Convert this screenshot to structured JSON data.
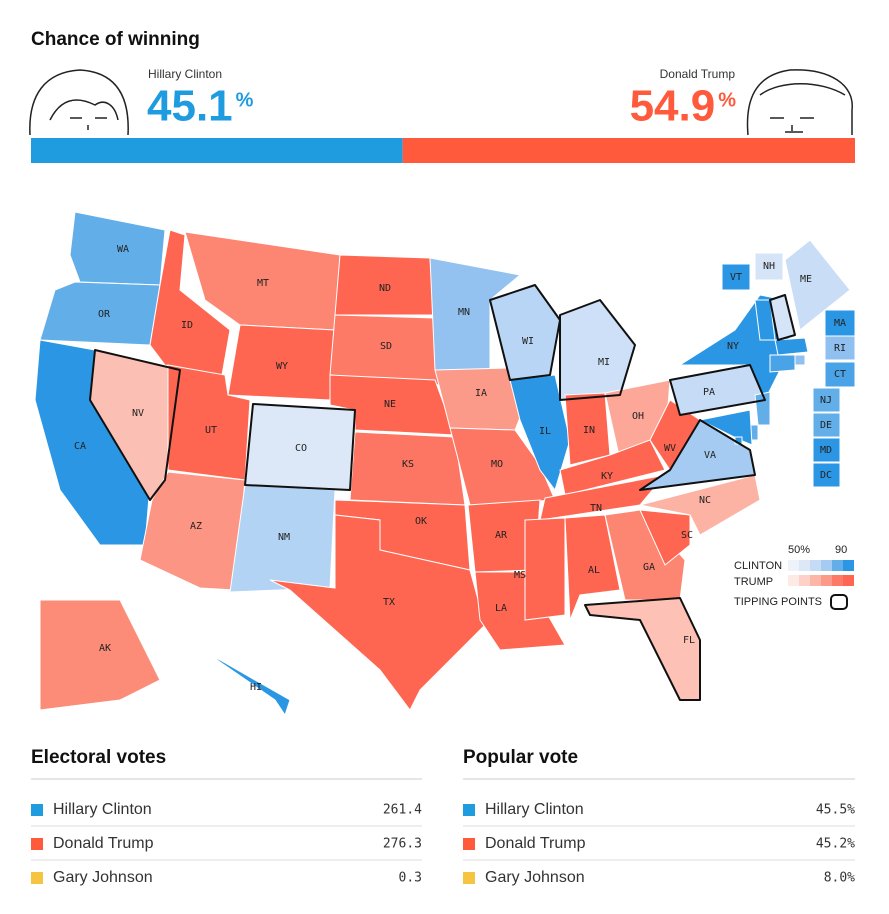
{
  "header": {
    "title": "Chance of winning"
  },
  "candidates": [
    {
      "name": "Hillary Clinton",
      "value": 45.1,
      "unit": "%",
      "color": "#1f9be0"
    },
    {
      "name": "Donald Trump",
      "value": 54.9,
      "unit": "%",
      "color": "#ff5a3c"
    }
  ],
  "map": {
    "states": [
      {
        "abbr": "WA",
        "color": "#62aee9"
      },
      {
        "abbr": "OR",
        "color": "#62aee9"
      },
      {
        "abbr": "CA",
        "color": "#2b97e4"
      },
      {
        "abbr": "NV",
        "color": "#fbc0b3",
        "tipping_point": true
      },
      {
        "abbr": "ID",
        "color": "#fe6652"
      },
      {
        "abbr": "MT",
        "color": "#fd8673"
      },
      {
        "abbr": "WY",
        "color": "#fe6652"
      },
      {
        "abbr": "UT",
        "color": "#fe6652"
      },
      {
        "abbr": "CO",
        "color": "#dce8f7",
        "tipping_point": true
      },
      {
        "abbr": "AZ",
        "color": "#fc9584"
      },
      {
        "abbr": "NM",
        "color": "#b3d3f5"
      },
      {
        "abbr": "ND",
        "color": "#fe6652"
      },
      {
        "abbr": "SD",
        "color": "#fd7a66"
      },
      {
        "abbr": "NE",
        "color": "#fe6652"
      },
      {
        "abbr": "KS",
        "color": "#fd7563"
      },
      {
        "abbr": "OK",
        "color": "#fe6652"
      },
      {
        "abbr": "TX",
        "color": "#fe6652"
      },
      {
        "abbr": "MN",
        "color": "#93c2f0"
      },
      {
        "abbr": "IA",
        "color": "#fc9a8a"
      },
      {
        "abbr": "MO",
        "color": "#fd7563"
      },
      {
        "abbr": "AR",
        "color": "#fe6652"
      },
      {
        "abbr": "LA",
        "color": "#fe6652"
      },
      {
        "abbr": "WI",
        "color": "#b9d5f5",
        "tipping_point": true
      },
      {
        "abbr": "IL",
        "color": "#2b97e4"
      },
      {
        "abbr": "MI",
        "color": "#cde0f7",
        "tipping_point": true
      },
      {
        "abbr": "IN",
        "color": "#fe6652"
      },
      {
        "abbr": "OH",
        "color": "#fca797"
      },
      {
        "abbr": "KY",
        "color": "#fe6652"
      },
      {
        "abbr": "TN",
        "color": "#fe6652"
      },
      {
        "abbr": "MS",
        "color": "#fe6652"
      },
      {
        "abbr": "AL",
        "color": "#fe6652"
      },
      {
        "abbr": "GA",
        "color": "#fd8673"
      },
      {
        "abbr": "FL",
        "color": "#fdc2b5",
        "tipping_point": true
      },
      {
        "abbr": "SC",
        "color": "#fe6652"
      },
      {
        "abbr": "NC",
        "color": "#fcb3a4"
      },
      {
        "abbr": "VA",
        "color": "#a6cbf2",
        "tipping_point": true
      },
      {
        "abbr": "WV",
        "color": "#fe6652"
      },
      {
        "abbr": "PA",
        "color": "#c5dbf6",
        "tipping_point": true
      },
      {
        "abbr": "NY",
        "color": "#2b97e4"
      },
      {
        "abbr": "VT",
        "color": "#2b97e4"
      },
      {
        "abbr": "NH",
        "color": "#d5e4f7",
        "tipping_point": true
      },
      {
        "abbr": "ME",
        "color": "#c9def6"
      },
      {
        "abbr": "MA",
        "color": "#2b97e4"
      },
      {
        "abbr": "RI",
        "color": "#8fc0ef"
      },
      {
        "abbr": "CT",
        "color": "#4ba3e7"
      },
      {
        "abbr": "NJ",
        "color": "#62aee9"
      },
      {
        "abbr": "DE",
        "color": "#62aee9"
      },
      {
        "abbr": "MD",
        "color": "#2b97e4"
      },
      {
        "abbr": "DC",
        "color": "#2b97e4"
      },
      {
        "abbr": "AK",
        "color": "#fc8b78"
      },
      {
        "abbr": "HI",
        "color": "#2b97e4"
      }
    ],
    "legend": {
      "clinton": "CLINTON",
      "trump": "TRUMP",
      "low": "50%",
      "high": "90",
      "tipping": "TIPPING POINTS"
    }
  },
  "electoral_votes": {
    "title": "Electoral votes",
    "rows": [
      {
        "name": "Hillary Clinton",
        "value": "261.4",
        "color": "#1f9be0"
      },
      {
        "name": "Donald Trump",
        "value": "276.3",
        "color": "#ff5a3c"
      },
      {
        "name": "Gary Johnson",
        "value": "0.3",
        "color": "#f5c542"
      }
    ]
  },
  "popular_vote": {
    "title": "Popular vote",
    "rows": [
      {
        "name": "Hillary Clinton",
        "value": "45.5%",
        "color": "#1f9be0"
      },
      {
        "name": "Donald Trump",
        "value": "45.2%",
        "color": "#ff5a3c"
      },
      {
        "name": "Gary Johnson",
        "value": "8.0%",
        "color": "#f5c542"
      }
    ]
  }
}
